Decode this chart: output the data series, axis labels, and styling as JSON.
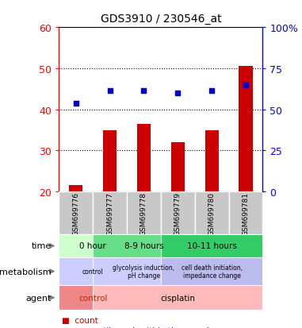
{
  "title": "GDS3910 / 230546_at",
  "samples": [
    "GSM699776",
    "GSM699777",
    "GSM699778",
    "GSM699779",
    "GSM699780",
    "GSM699781"
  ],
  "bar_values": [
    21.5,
    35.0,
    36.5,
    32.0,
    35.0,
    50.5
  ],
  "dot_values": [
    41.5,
    44.5,
    44.5,
    44.0,
    44.5,
    46.0
  ],
  "bar_color": "#cc0000",
  "dot_color": "#0000cc",
  "ylim_left": [
    20,
    60
  ],
  "ylim_right": [
    0,
    100
  ],
  "yticks_left": [
    20,
    30,
    40,
    50,
    60
  ],
  "ytick_labels_right": [
    "0",
    "25",
    "50",
    "75",
    "100%"
  ],
  "grid_yticks": [
    30,
    40,
    50
  ],
  "sample_bg_color": "#c8c8c8",
  "background_color": "#ffffff",
  "time_groups": [
    {
      "start": 0,
      "end": 1,
      "label": "0 hour",
      "color": "#ccffcc"
    },
    {
      "start": 1,
      "end": 3,
      "label": "8-9 hours",
      "color": "#66dd88"
    },
    {
      "start": 3,
      "end": 5,
      "label": "10-11 hours",
      "color": "#33cc66"
    }
  ],
  "meta_groups": [
    {
      "start": 0,
      "end": 1,
      "label": "control",
      "color": "#ccccff"
    },
    {
      "start": 1,
      "end": 3,
      "label": "glycolysis induction,\npH change",
      "color": "#ccccff"
    },
    {
      "start": 3,
      "end": 5,
      "label": "cell death initiation,\nimpedance change",
      "color": "#bbbbee"
    }
  ],
  "agent_groups": [
    {
      "start": 0,
      "end": 1,
      "label": "control",
      "color": "#ee8888",
      "text_color": "#cc2200"
    },
    {
      "start": 1,
      "end": 5,
      "label": "cisplatin",
      "color": "#ffbbbb",
      "text_color": "#000000"
    }
  ],
  "bar_bottom": 20
}
